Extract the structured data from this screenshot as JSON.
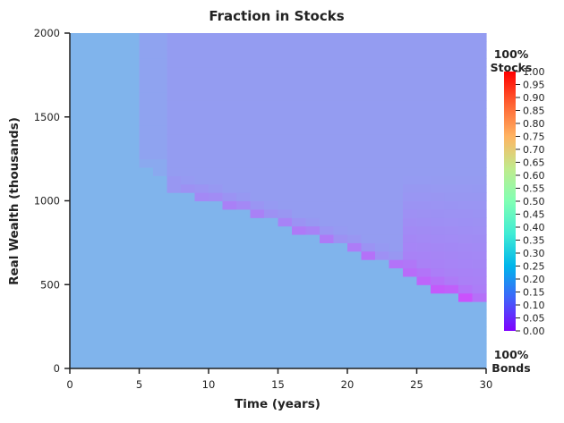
{
  "chart_data": {
    "type": "heatmap",
    "title": "Fraction in Stocks",
    "xlabel": "Time (years)",
    "ylabel": "Real Wealth (thousands)",
    "xlim": [
      0,
      30
    ],
    "ylim": [
      0,
      2000
    ],
    "x_ticks": [
      "0",
      "5",
      "10",
      "15",
      "20",
      "25",
      "30"
    ],
    "y_ticks": [
      "0",
      "500",
      "1000",
      "1500",
      "2000"
    ],
    "colorbar": {
      "colormap": "rainbow",
      "range": [
        0.0,
        1.0
      ],
      "ticks": [
        "0.00",
        "0.05",
        "0.10",
        "0.15",
        "0.20",
        "0.25",
        "0.30",
        "0.35",
        "0.40",
        "0.45",
        "0.50",
        "0.55",
        "0.60",
        "0.65",
        "0.70",
        "0.75",
        "0.80",
        "0.85",
        "0.90",
        "0.95",
        "1.00"
      ],
      "top_label": [
        "100%",
        "Stocks"
      ],
      "bottom_label": [
        "100%",
        "Bonds"
      ]
    },
    "regions": [
      {
        "description": "Low-wealth zone below the glide boundary",
        "value": 0.25
      },
      {
        "description": "Early-years upper band (t < 4)",
        "value": 0.25
      },
      {
        "description": "Upper plateau above the boundary",
        "value": 0.21
      },
      {
        "description": "Boundary valley (dark band)",
        "value": 0.15
      },
      {
        "description": "Late-years mid-wealth dip (t > 25)",
        "value": 0.17
      }
    ],
    "boundary": {
      "description": "Wealth level where the allocation drops sharply",
      "t": [
        7,
        10,
        12,
        15,
        18,
        20,
        22,
        24,
        26,
        28,
        30
      ],
      "wealth": [
        1060,
        1010,
        960,
        870,
        780,
        720,
        660,
        580,
        500,
        430,
        370
      ],
      "min_value": [
        0.19,
        0.17,
        0.16,
        0.16,
        0.15,
        0.15,
        0.14,
        0.13,
        0.12,
        0.1,
        0.08
      ]
    }
  }
}
